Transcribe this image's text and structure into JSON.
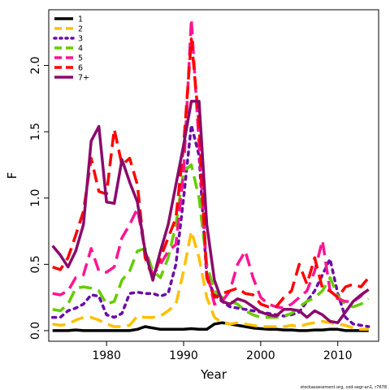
{
  "chart_data": {
    "type": "line",
    "title": "",
    "xlabel": "Year",
    "ylabel": "F",
    "xlim": [
      1972.5,
      2015.3
    ],
    "ylim": [
      -0.08,
      2.42
    ],
    "xticks": [
      1980,
      1990,
      2000,
      2010
    ],
    "yticks": [
      "0.0",
      "0.5",
      "1.0",
      "1.5",
      "2.0"
    ],
    "ytick_values": [
      0,
      0.5,
      1.0,
      1.5,
      2.0
    ],
    "x": [
      1973,
      1974,
      1975,
      1976,
      1977,
      1978,
      1979,
      1980,
      1981,
      1982,
      1983,
      1984,
      1985,
      1986,
      1987,
      1988,
      1989,
      1990,
      1991,
      1992,
      1993,
      1994,
      1995,
      1996,
      1997,
      1998,
      1999,
      2000,
      2001,
      2002,
      2003,
      2004,
      2005,
      2006,
      2007,
      2008,
      2009,
      2010,
      2011,
      2012,
      2013,
      2014
    ],
    "legend_position": "top-left",
    "grid": false,
    "series": [
      {
        "name": "1",
        "color": "#000000",
        "dash": "solid",
        "values": [
          0.0,
          0.0,
          0.0,
          0.005,
          0.0,
          0.0,
          0.0,
          0.0,
          0.0,
          0.0,
          0.0,
          0.01,
          0.03,
          0.02,
          0.01,
          0.01,
          0.01,
          0.01,
          0.015,
          0.01,
          0.01,
          0.05,
          0.06,
          0.05,
          0.04,
          0.03,
          0.02,
          0.015,
          0.01,
          0.01,
          0.005,
          0.005,
          0.0,
          0.0,
          0.005,
          0.005,
          0.01,
          0.01,
          0.0,
          0.0,
          0.0,
          0.0
        ]
      },
      {
        "name": "2",
        "color": "#ffc000",
        "dash": "dashed",
        "values": [
          0.05,
          0.04,
          0.05,
          0.08,
          0.1,
          0.1,
          0.08,
          0.05,
          0.03,
          0.03,
          0.04,
          0.11,
          0.1,
          0.1,
          0.11,
          0.15,
          0.2,
          0.45,
          0.75,
          0.55,
          0.25,
          0.1,
          0.06,
          0.05,
          0.06,
          0.05,
          0.04,
          0.03,
          0.03,
          0.03,
          0.03,
          0.04,
          0.03,
          0.05,
          0.06,
          0.07,
          0.06,
          0.05,
          0.04,
          0.02,
          0.01,
          0.01
        ]
      },
      {
        "name": "3",
        "color": "#6a0ca8",
        "dash": "dotted",
        "values": [
          0.1,
          0.1,
          0.15,
          0.17,
          0.2,
          0.27,
          0.26,
          0.12,
          0.1,
          0.13,
          0.28,
          0.29,
          0.28,
          0.28,
          0.26,
          0.28,
          0.5,
          1.0,
          1.55,
          1.32,
          0.4,
          0.27,
          0.22,
          0.18,
          0.17,
          0.16,
          0.15,
          0.14,
          0.13,
          0.12,
          0.11,
          0.12,
          0.14,
          0.22,
          0.3,
          0.42,
          0.54,
          0.28,
          0.1,
          0.05,
          0.04,
          0.03
        ]
      },
      {
        "name": "4",
        "color": "#66cc00",
        "dash": "dashed",
        "values": [
          0.16,
          0.15,
          0.2,
          0.32,
          0.33,
          0.32,
          0.3,
          0.2,
          0.22,
          0.38,
          0.45,
          0.6,
          0.62,
          0.45,
          0.4,
          0.55,
          0.8,
          1.2,
          1.25,
          1.0,
          0.5,
          0.3,
          0.25,
          0.22,
          0.2,
          0.15,
          0.12,
          0.1,
          0.1,
          0.1,
          0.11,
          0.13,
          0.18,
          0.22,
          0.25,
          0.3,
          0.4,
          0.26,
          0.2,
          0.18,
          0.2,
          0.24
        ]
      },
      {
        "name": "5",
        "color": "#ff1493",
        "dash": "dashed",
        "values": [
          0.28,
          0.27,
          0.3,
          0.4,
          0.42,
          0.62,
          0.45,
          0.44,
          0.48,
          0.7,
          0.8,
          0.92,
          0.6,
          0.42,
          0.5,
          0.6,
          0.65,
          1.2,
          2.35,
          1.4,
          0.45,
          0.2,
          0.22,
          0.3,
          0.5,
          0.6,
          0.4,
          0.25,
          0.2,
          0.18,
          0.17,
          0.2,
          0.25,
          0.3,
          0.45,
          0.68,
          0.3,
          0.24,
          0.22,
          0.22,
          0.26,
          0.33
        ]
      },
      {
        "name": "6",
        "color": "#ff0000",
        "dash": "dashed",
        "values": [
          0.48,
          0.46,
          0.55,
          0.72,
          0.9,
          1.3,
          1.05,
          1.03,
          1.52,
          1.25,
          1.3,
          1.1,
          0.55,
          0.4,
          0.55,
          0.7,
          0.85,
          1.4,
          2.2,
          1.55,
          0.4,
          0.25,
          0.28,
          0.3,
          0.32,
          0.28,
          0.27,
          0.2,
          0.18,
          0.18,
          0.25,
          0.3,
          0.5,
          0.35,
          0.55,
          0.32,
          0.3,
          0.25,
          0.33,
          0.35,
          0.33,
          0.4
        ]
      },
      {
        "name": "7+",
        "color": "#8b0a6b",
        "dash": "solid",
        "values": [
          0.64,
          0.57,
          0.48,
          0.6,
          0.8,
          1.43,
          1.54,
          0.97,
          0.96,
          1.29,
          1.12,
          0.97,
          0.6,
          0.38,
          0.6,
          0.8,
          1.1,
          1.4,
          1.73,
          1.73,
          0.8,
          0.38,
          0.22,
          0.2,
          0.24,
          0.22,
          0.18,
          0.14,
          0.12,
          0.11,
          0.16,
          0.16,
          0.15,
          0.1,
          0.15,
          0.12,
          0.07,
          0.06,
          0.14,
          0.22,
          0.27,
          0.31
        ]
      }
    ],
    "footnote": "stockassessment.org, cod-segr-an1, r7678"
  }
}
